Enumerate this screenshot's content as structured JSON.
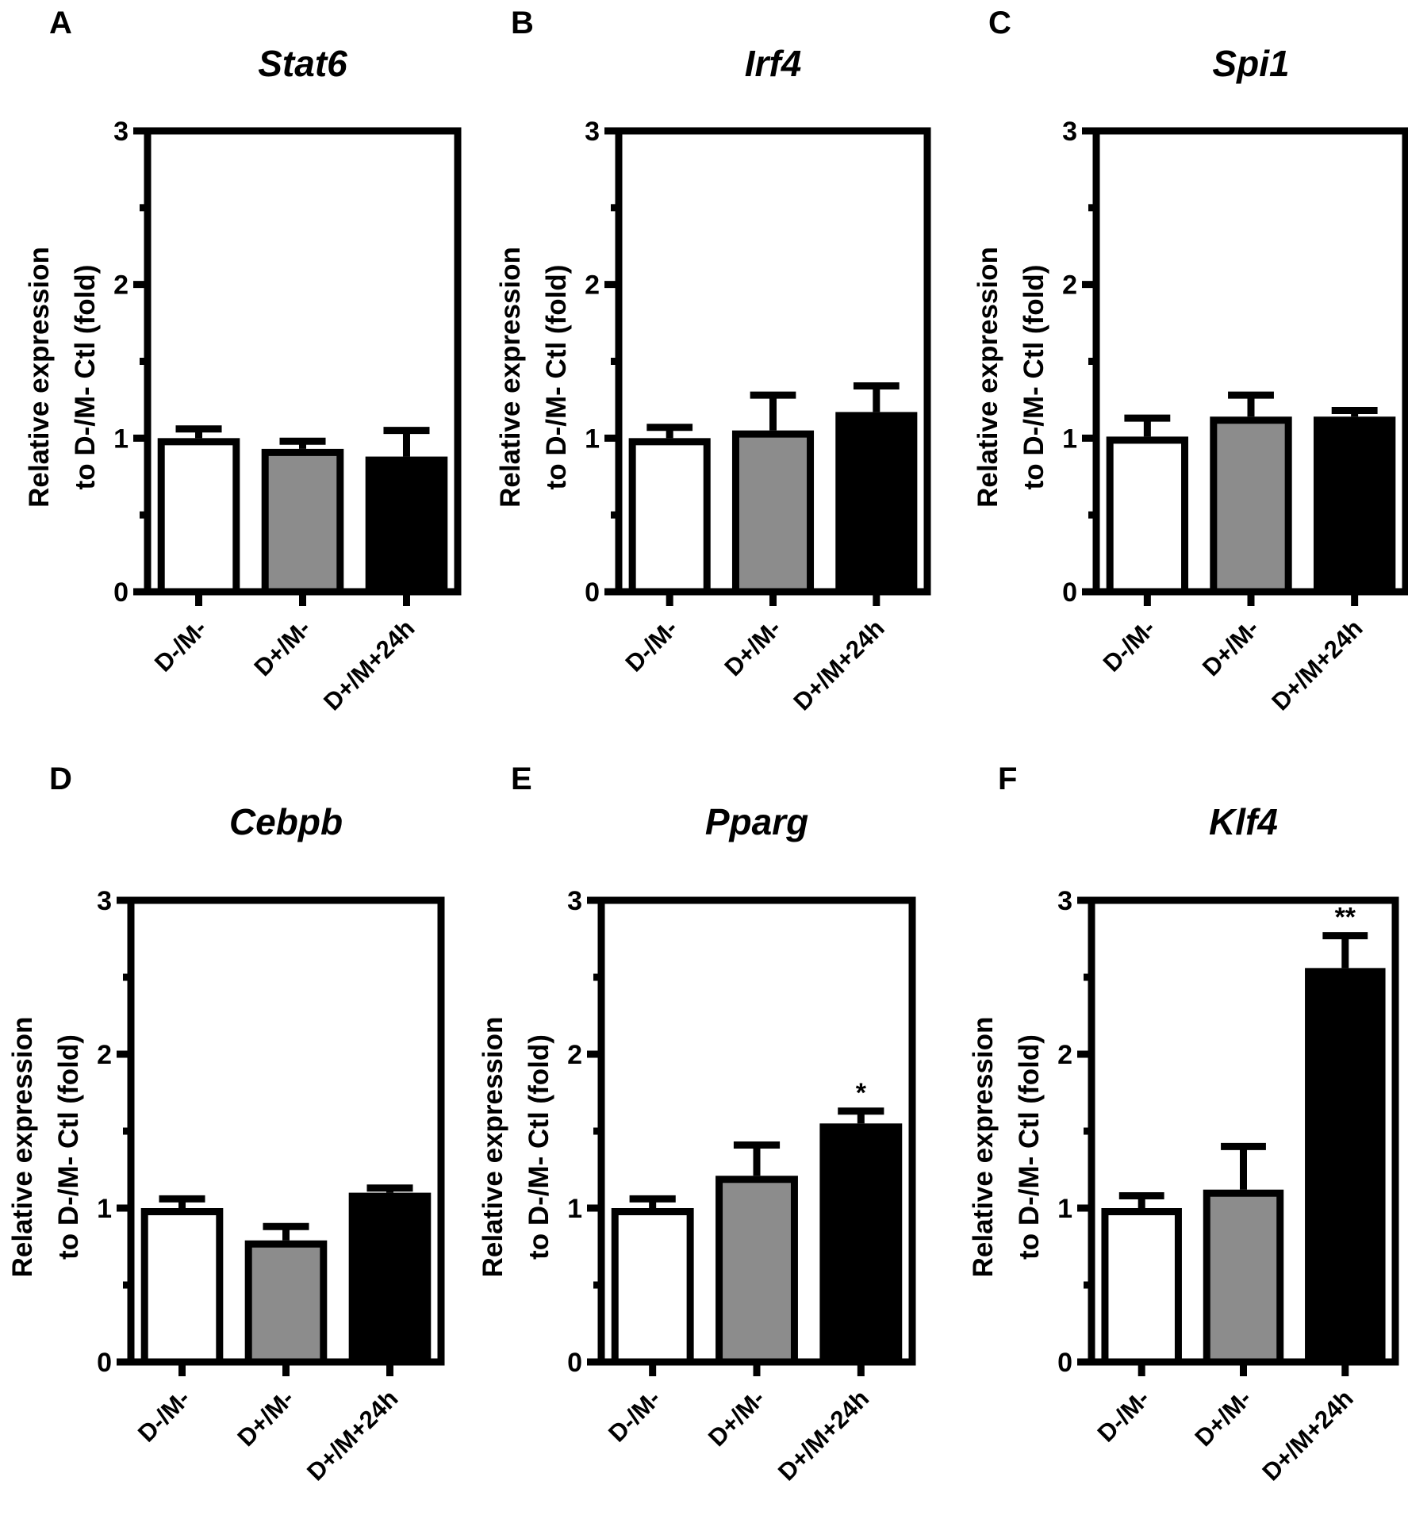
{
  "figure": {
    "colors": {
      "axis": "#000000",
      "bar_fills": [
        "#ffffff",
        "#8c8c8c",
        "#000000"
      ]
    }
  },
  "chart_data": [
    {
      "type": "bar",
      "panel": "A",
      "title": "Stat6",
      "ylabel": [
        "Relative expression",
        "to D-/M- Ctl (fold)"
      ],
      "categories": [
        "D-/M-",
        "D+/M-",
        "D+/M+24h"
      ],
      "values": [
        1.0,
        0.93,
        0.88
      ],
      "error_upper": [
        1.06,
        0.98,
        1.05
      ],
      "annotations": [
        "",
        "",
        ""
      ],
      "ylim": [
        0,
        3
      ],
      "yticks": [
        0,
        1,
        2,
        3
      ],
      "minor_ticks": [
        0.5,
        1.5,
        2.5
      ]
    },
    {
      "type": "bar",
      "panel": "B",
      "title": "Irf4",
      "ylabel": [
        "Relative expression",
        "to D-/M- Ctl (fold)"
      ],
      "categories": [
        "D-/M-",
        "D+/M-",
        "D+/M+24h"
      ],
      "values": [
        1.0,
        1.05,
        1.17
      ],
      "error_upper": [
        1.07,
        1.28,
        1.34
      ],
      "annotations": [
        "",
        "",
        ""
      ],
      "ylim": [
        0,
        3
      ],
      "yticks": [
        0,
        1,
        2,
        3
      ],
      "minor_ticks": [
        0.5,
        1.5,
        2.5
      ]
    },
    {
      "type": "bar",
      "panel": "C",
      "title": "Spi1",
      "ylabel": [
        "Relative expression",
        "to D-/M- Ctl (fold)"
      ],
      "categories": [
        "D-/M-",
        "D+/M-",
        "D+/M+24h"
      ],
      "values": [
        1.01,
        1.14,
        1.14
      ],
      "error_upper": [
        1.13,
        1.28,
        1.18
      ],
      "annotations": [
        "",
        "",
        ""
      ],
      "ylim": [
        0,
        3
      ],
      "yticks": [
        0,
        1,
        2,
        3
      ],
      "minor_ticks": [
        0.5,
        1.5,
        2.5
      ]
    },
    {
      "type": "bar",
      "panel": "D",
      "title": "Cebpb",
      "ylabel": [
        "Relative expression",
        "to D-/M- Ctl (fold)"
      ],
      "categories": [
        "D-/M-",
        "D+/M-",
        "D+/M+24h"
      ],
      "values": [
        1.0,
        0.79,
        1.1
      ],
      "error_upper": [
        1.06,
        0.88,
        1.13
      ],
      "annotations": [
        "",
        "",
        ""
      ],
      "ylim": [
        0,
        3
      ],
      "yticks": [
        0,
        1,
        2,
        3
      ],
      "minor_ticks": [
        0.5,
        1.5,
        2.5
      ]
    },
    {
      "type": "bar",
      "panel": "E",
      "title": "Pparg",
      "ylabel": [
        "Relative expression",
        "to D-/M- Ctl (fold)"
      ],
      "categories": [
        "D-/M-",
        "D+/M-",
        "D+/M+24h"
      ],
      "values": [
        1.0,
        1.21,
        1.55
      ],
      "error_upper": [
        1.06,
        1.41,
        1.63
      ],
      "annotations": [
        "",
        "",
        "*"
      ],
      "ylim": [
        0,
        3
      ],
      "yticks": [
        0,
        1,
        2,
        3
      ],
      "minor_ticks": [
        0.5,
        1.5,
        2.5
      ]
    },
    {
      "type": "bar",
      "panel": "F",
      "title": "Klf4",
      "ylabel": [
        "Relative expression",
        "to D-/M- Ctl (fold)"
      ],
      "categories": [
        "D-/M-",
        "D+/M-",
        "D+/M+24h"
      ],
      "values": [
        1.0,
        1.12,
        2.56
      ],
      "error_upper": [
        1.08,
        1.4,
        2.77
      ],
      "annotations": [
        "",
        "",
        "**"
      ],
      "ylim": [
        0,
        3
      ],
      "yticks": [
        0,
        1,
        2,
        3
      ],
      "minor_ticks": [
        0.5,
        1.5,
        2.5
      ]
    }
  ]
}
